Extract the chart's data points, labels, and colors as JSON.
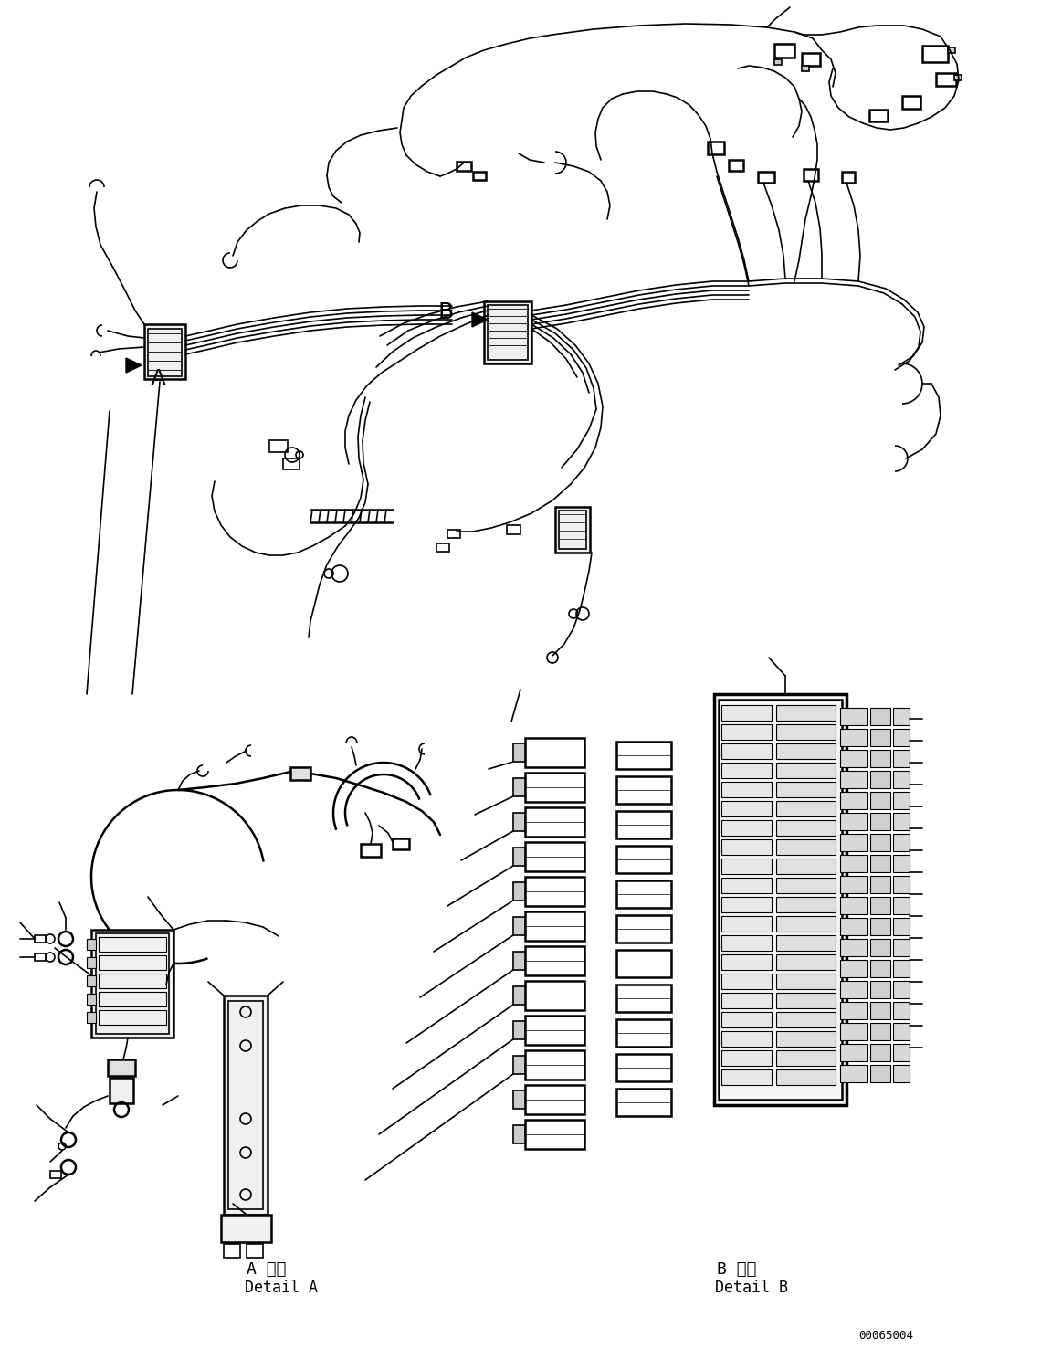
{
  "background_color": "#ffffff",
  "line_color": "#000000",
  "figure_width": 11.63,
  "figure_height": 14.88,
  "dpi": 100,
  "label_A": "A",
  "label_B": "B",
  "detail_A_ja": "A 詳細",
  "detail_A_en": "Detail A",
  "detail_B_ja": "B 詳細",
  "detail_B_en": "Detail B",
  "part_number": "00065004"
}
